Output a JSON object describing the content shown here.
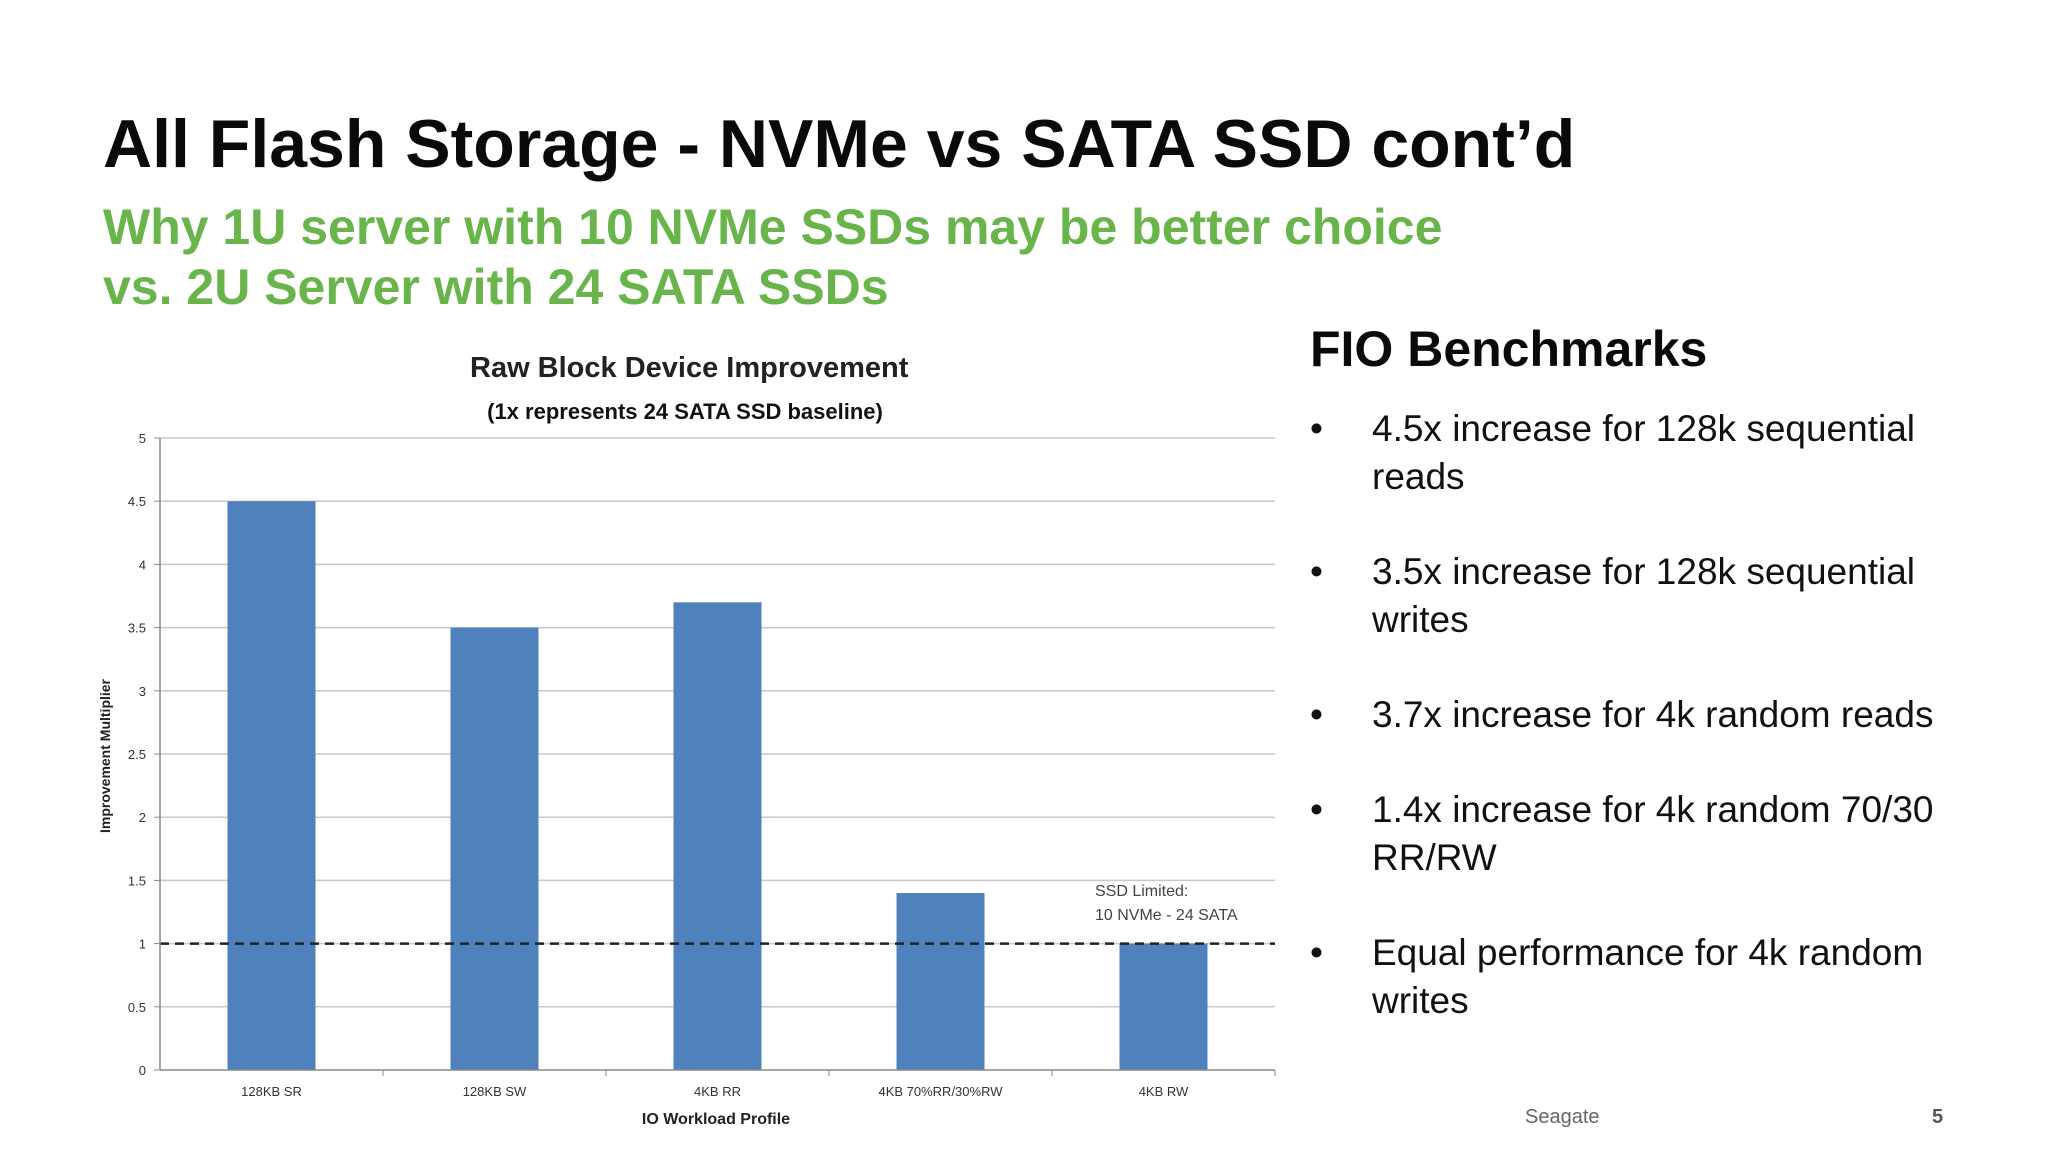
{
  "slide": {
    "title": "All Flash Storage - NVMe vs SATA SSD cont’d",
    "subtitle_line1": "Why 1U server with 10 NVMe SSDs may be better choice",
    "subtitle_line2": "vs. 2U Server with 24 SATA SSDs",
    "footer_brand": "Seagate",
    "page_number": "5"
  },
  "benchmarks": {
    "heading": "FIO Benchmarks",
    "bullet_glyph": "•",
    "items": [
      "4.5x increase for 128k sequential reads",
      "3.5x increase for 128k sequential writes",
      "3.7x increase for 4k random reads",
      "1.4x increase for 4k random 70/30 RR/RW",
      "Equal performance for 4k random writes"
    ]
  },
  "chart_data": {
    "type": "bar",
    "title": "Raw Block Device Improvement",
    "subtitle": "(1x represents 24 SATA SSD baseline)",
    "xlabel": "IO Workload Profile",
    "ylabel": "Improvement Multiplier",
    "categories": [
      "128KB SR",
      "128KB SW",
      "4KB RR",
      "4KB 70%RR/30%RW",
      "4KB RW"
    ],
    "values": [
      4.5,
      3.5,
      3.7,
      1.4,
      1.0
    ],
    "ylim": [
      0,
      5
    ],
    "yticks": [
      "0",
      "0.5",
      "1",
      "1.5",
      "2",
      "2.5",
      "3",
      "3.5",
      "4",
      "4.5",
      "5"
    ],
    "grid": true,
    "bar_color": "#4f81bd",
    "reference_line": {
      "value": 1,
      "style": "dashed"
    },
    "annotation_line1": "SSD Limited:",
    "annotation_line2": "10 NVMe - 24 SATA"
  }
}
